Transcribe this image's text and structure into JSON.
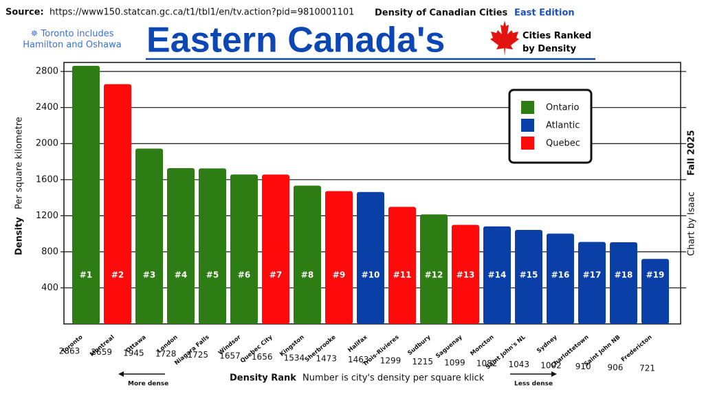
{
  "chart_data": {
    "type": "bar",
    "source_label": "Source:",
    "source_url": "https://www150.statcan.gc.ca/t1/tbl1/en/tv.action?pid=9810001101",
    "header_title": "Density of Canadian Cities",
    "edition": "East Edition",
    "note": "✵ Toronto includes Hamilton and Oshawa",
    "title": "Eastern Canada's",
    "subtitle": "Cities Ranked by Density",
    "y_label": "Density",
    "y_sublabel": "Per square kilometre",
    "x_label": "Density Rank",
    "x_sublabel": "Number is city's density per square klick",
    "more_dense": "More dense",
    "less_dense": "Less dense",
    "season": "Fall 2025",
    "credit": "Chart by Isaac",
    "categories": [
      "Toronto",
      "Montreal",
      "Ottawa",
      "London",
      "Niagara Falls",
      "Windsor",
      "Quebec City",
      "Kingston",
      "Sherbrooke",
      "Halifax",
      "Trois-Rivieres",
      "Sudbury",
      "Saguenay",
      "Moncton",
      "Saint John's NL",
      "Sydney",
      "Charlottetown",
      "Saint John NB",
      "Fredericton"
    ],
    "rank_labels": [
      "#1",
      "#2",
      "#3",
      "#4",
      "#5",
      "#6",
      "#7",
      "#8",
      "#9",
      "#10",
      "#11",
      "#12",
      "#13",
      "#14",
      "#15",
      "#16",
      "#17",
      "#18",
      "#19"
    ],
    "series": [
      {
        "name": "Ontario",
        "color": "#2e7d14",
        "values": [
          2863,
          null,
          1945,
          1728,
          1725,
          1657,
          null,
          1534,
          null,
          null,
          null,
          1215,
          null,
          null,
          null,
          null,
          null,
          null,
          null
        ]
      },
      {
        "name": "Atlantic",
        "color": "#0a3fa8",
        "values": [
          null,
          null,
          null,
          null,
          null,
          null,
          null,
          null,
          null,
          1463,
          null,
          null,
          null,
          1082,
          1043,
          1002,
          910,
          906,
          721
        ]
      },
      {
        "name": "Quebec",
        "color": "#ff0a0a",
        "values": [
          null,
          2659,
          null,
          null,
          null,
          null,
          1656,
          null,
          1473,
          null,
          1299,
          null,
          1099,
          null,
          null,
          null,
          null,
          null,
          null
        ]
      }
    ],
    "ylim": [
      0,
      2900
    ],
    "yticks": [
      400,
      800,
      1200,
      1600,
      2000,
      2400,
      2800
    ],
    "grid": true,
    "legend": "upper right"
  }
}
